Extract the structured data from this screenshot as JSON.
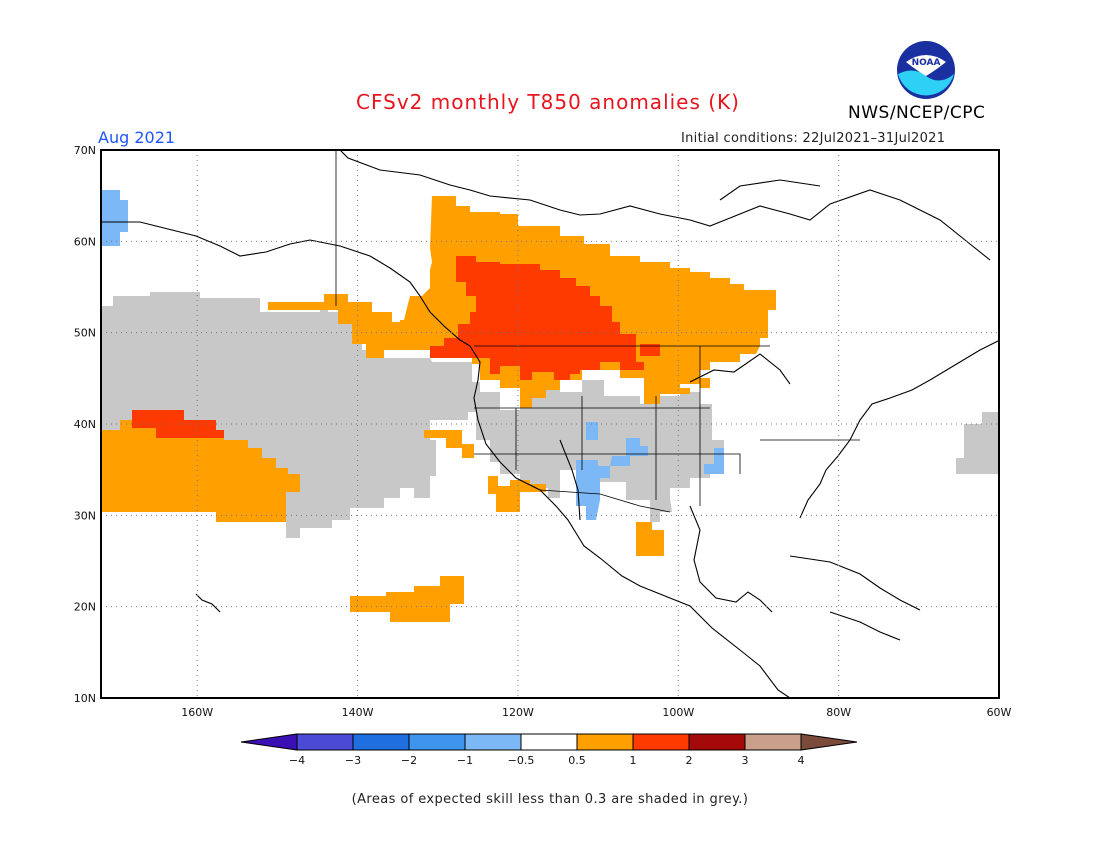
{
  "header": {
    "title": "CFSv2 monthly T850 anomalies (K)",
    "agency": "NWS/NCEP/CPC",
    "target_month": "Aug 2021",
    "initial_conditions": "Initial conditions: 22Jul2021–31Jul2021",
    "logo_text": "NOAA"
  },
  "map": {
    "lon_range": [
      -172,
      -60
    ],
    "lat_range": [
      10,
      70
    ],
    "lat_ticks": [
      "10N",
      "20N",
      "30N",
      "40N",
      "50N",
      "60N",
      "70N"
    ],
    "lon_ticks": [
      "160W",
      "140W",
      "120W",
      "100W",
      "80W",
      "60W"
    ],
    "shading_regions": [
      {
        "name": "grey-low-skill-pacific",
        "class": "grey"
      },
      {
        "name": "orange-canada-northwest",
        "class": "0.5 to 1"
      },
      {
        "name": "red-canada-interior",
        "class": "1 to 2"
      },
      {
        "name": "red-pacific-40n",
        "class": "1 to 2"
      },
      {
        "name": "orange-pacific-35n",
        "class": "0.5 to 1"
      },
      {
        "name": "orange-pacific-22n",
        "class": "0.5 to 1"
      },
      {
        "name": "lightblue-southwest-us",
        "class": "-1 to -0.5"
      },
      {
        "name": "lightblue-alaska-west",
        "class": "-1 to -0.5"
      }
    ]
  },
  "colorbar": {
    "levels": [
      "-4",
      "-3",
      "-2",
      "-1",
      "-0.5",
      "0.5",
      "1",
      "2",
      "3",
      "4"
    ],
    "colors": [
      "#3a0fb4",
      "#4a4ad6",
      "#1f6fe0",
      "#3f94ee",
      "#7cb8f5",
      "#ffffff",
      "#ff9f00",
      "#ff3a00",
      "#a50a0a",
      "#c8a08c",
      "#7a4a3a"
    ]
  },
  "footer_note": "(Areas of expected skill less than 0.3 are shaded in grey.)"
}
